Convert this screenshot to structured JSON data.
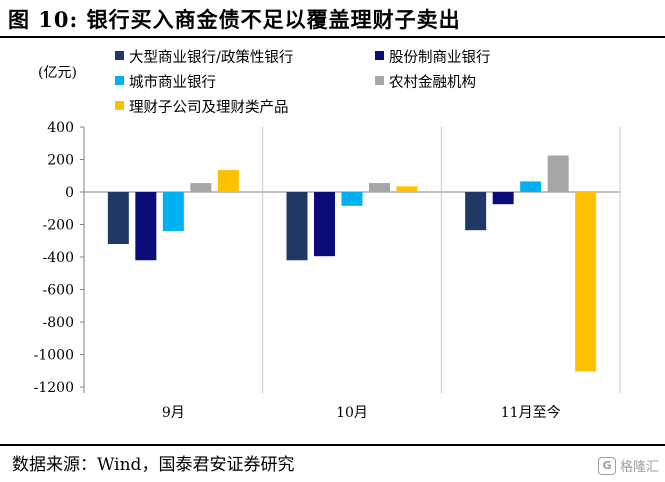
{
  "figure": {
    "title": "图 10:  银行买入商金债不足以覆盖理财子卖出",
    "source": "数据来源：Wind，国泰君安证券研究",
    "watermark": "格隆汇"
  },
  "chart_data": {
    "type": "bar",
    "unit_label": "(亿元)",
    "categories": [
      "9月",
      "10月",
      "11月至今"
    ],
    "ylim": [
      -1200,
      400
    ],
    "yticks": [
      400,
      200,
      0,
      -200,
      -400,
      -600,
      -800,
      -1000,
      -1200
    ],
    "grid": false,
    "legend_position": "top",
    "series": [
      {
        "name": "大型商业银行/政策性银行",
        "color": "#1f3864",
        "values": [
          -320,
          -420,
          -235
        ]
      },
      {
        "name": "股份制商业银行",
        "color": "#0b0b7a",
        "values": [
          -420,
          -395,
          -75
        ]
      },
      {
        "name": "城市商业银行",
        "color": "#00b0f0",
        "values": [
          -240,
          -85,
          65
        ]
      },
      {
        "name": "农村金融机构",
        "color": "#a6a6a6",
        "values": [
          55,
          55,
          225
        ]
      },
      {
        "name": "理财子公司及理财类产品",
        "color": "#ffc000",
        "values": [
          135,
          35,
          -1105
        ]
      }
    ]
  }
}
